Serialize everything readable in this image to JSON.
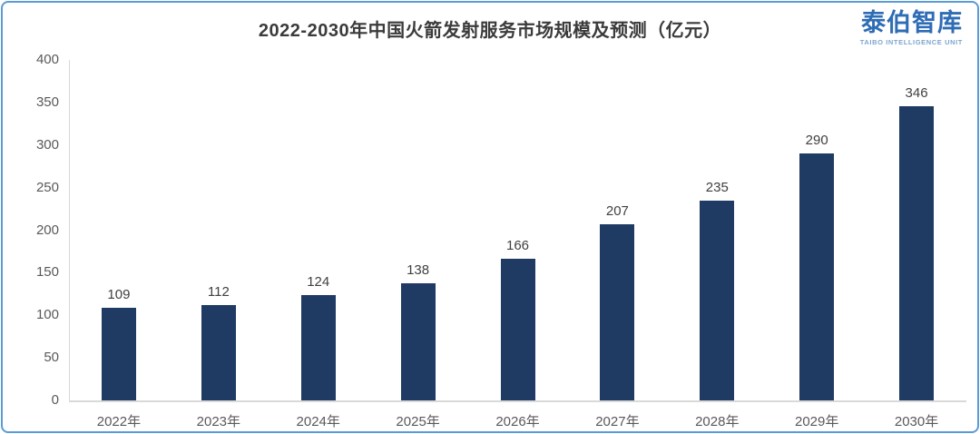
{
  "title": "2022-2030年中国火箭发射服务市场规模及预测（亿元）",
  "brand": {
    "name": "泰伯智库",
    "subtitle": "TAIBO INTELLIGENCE UNIT"
  },
  "colors": {
    "bar": "#1f3a63",
    "border": "#5b9bd5",
    "axis_line": "#d9d9d9",
    "title_text": "#3b3b3b",
    "tick_text": "#595959",
    "value_label_text": "#404040",
    "brand_blue": "#2e6cb5",
    "brand_sub_blue": "#7ca6cf"
  },
  "chart_data": {
    "type": "bar",
    "title": "2022-2030年中国火箭发射服务市场规模及预测（亿元）",
    "categories": [
      "2022年",
      "2023年",
      "2024年",
      "2025年",
      "2026年",
      "2027年",
      "2028年",
      "2029年",
      "2030年"
    ],
    "values": [
      109,
      112,
      124,
      138,
      166,
      207,
      235,
      290,
      346
    ],
    "xlabel": "",
    "ylabel": "",
    "ylim": [
      0,
      400
    ],
    "yticks": [
      0,
      50,
      100,
      150,
      200,
      250,
      300,
      350,
      400
    ],
    "grid": false,
    "legend": false,
    "data_labels_shown": true
  }
}
